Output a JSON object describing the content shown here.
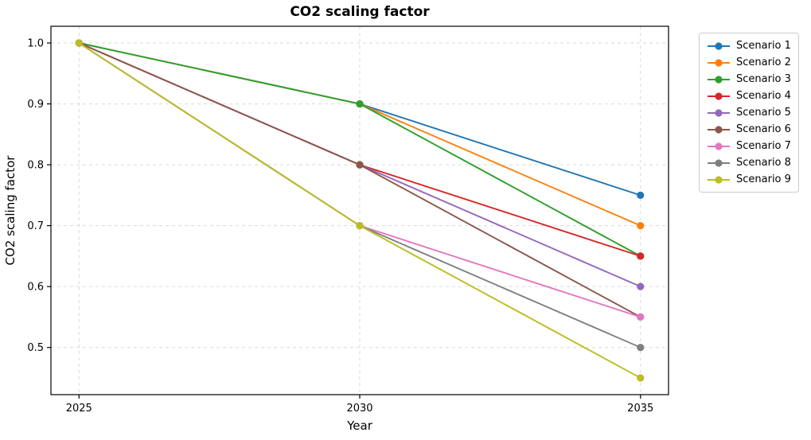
{
  "chart_data": {
    "type": "line",
    "title": "CO2 scaling factor",
    "xlabel": "Year",
    "ylabel": "CO2 scaling factor",
    "x": [
      2025,
      2030,
      2035
    ],
    "xticks": [
      "2025",
      "2030",
      "2035"
    ],
    "xtick_values": [
      2025,
      2030,
      2035
    ],
    "yticks": [
      "0.5",
      "0.6",
      "0.7",
      "0.8",
      "0.9",
      "1.0"
    ],
    "ytick_values": [
      0.5,
      0.6,
      0.7,
      0.8,
      0.9,
      1.0
    ],
    "xlim": [
      2024.5,
      2035.5
    ],
    "ylim": [
      0.4225,
      1.0275
    ],
    "grid": true,
    "grid_style": "dashed",
    "grid_color": "#d9d9d9",
    "marker": "circle",
    "legend_position": "outside-upper-right",
    "series": [
      {
        "name": "Scenario 1",
        "color": "#1f77b4",
        "values": [
          1.0,
          0.9,
          0.75
        ]
      },
      {
        "name": "Scenario 2",
        "color": "#ff7f0e",
        "values": [
          1.0,
          0.9,
          0.7
        ]
      },
      {
        "name": "Scenario 3",
        "color": "#2ca02c",
        "values": [
          1.0,
          0.9,
          0.65
        ]
      },
      {
        "name": "Scenario 4",
        "color": "#d62728",
        "values": [
          1.0,
          0.8,
          0.65
        ]
      },
      {
        "name": "Scenario 5",
        "color": "#9467bd",
        "values": [
          1.0,
          0.8,
          0.6
        ]
      },
      {
        "name": "Scenario 6",
        "color": "#8c564b",
        "values": [
          1.0,
          0.8,
          0.55
        ]
      },
      {
        "name": "Scenario 7",
        "color": "#e377c2",
        "values": [
          1.0,
          0.7,
          0.55
        ]
      },
      {
        "name": "Scenario 8",
        "color": "#7f7f7f",
        "values": [
          1.0,
          0.7,
          0.5
        ]
      },
      {
        "name": "Scenario 9",
        "color": "#bcbd22",
        "values": [
          1.0,
          0.7,
          0.45
        ]
      }
    ]
  }
}
